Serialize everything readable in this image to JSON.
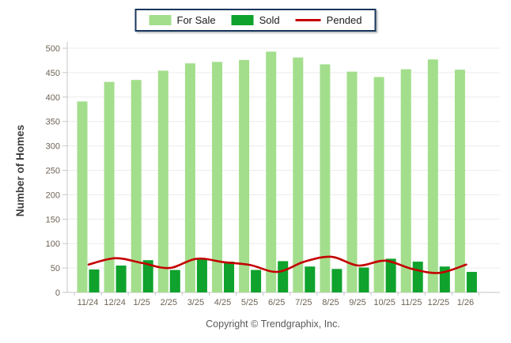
{
  "legend": {
    "border_color": "#17375E",
    "items": [
      {
        "label": "For Sale",
        "type": "swatch",
        "color": "#A3DE8C"
      },
      {
        "label": "Sold",
        "type": "swatch",
        "color": "#0FA22C"
      },
      {
        "label": "Pended",
        "type": "line",
        "color": "#C40000"
      }
    ]
  },
  "chart_data": {
    "type": "bar",
    "title": "",
    "xlabel": "",
    "ylabel": "Number of Homes",
    "ylim": [
      0,
      500
    ],
    "ytick_step": 50,
    "yticks": [
      0,
      50,
      100,
      150,
      200,
      250,
      300,
      350,
      400,
      450,
      500
    ],
    "grid": true,
    "legend_position": "top-center",
    "categories": [
      "11/24",
      "12/24",
      "1/25",
      "2/25",
      "3/25",
      "4/25",
      "5/25",
      "6/25",
      "7/25",
      "8/25",
      "9/25",
      "10/25",
      "11/25",
      "12/25",
      "1/26"
    ],
    "series": [
      {
        "name": "For Sale",
        "render": "bar",
        "color": "#A3DE8C",
        "values": [
          391,
          431,
          435,
          454,
          469,
          472,
          476,
          493,
          481,
          467,
          452,
          441,
          457,
          477,
          456
        ]
      },
      {
        "name": "Sold",
        "render": "bar",
        "color": "#0FA22C",
        "values": [
          47,
          55,
          66,
          46,
          68,
          63,
          46,
          64,
          53,
          48,
          51,
          69,
          63,
          53,
          42
        ]
      },
      {
        "name": "Pended",
        "render": "line",
        "color": "#C40000",
        "values": [
          57,
          70,
          60,
          50,
          69,
          62,
          56,
          42,
          63,
          73,
          55,
          65,
          48,
          40,
          57
        ]
      }
    ]
  },
  "footer": {
    "text": "Copyright © Trendgraphix, Inc."
  },
  "colors": {
    "grid_line": "#ECECEC",
    "axis_line": "#C6C6C6",
    "tick_text": "#6E6355",
    "axis_title_text": "#3F3F3F",
    "footer_text": "#595959"
  }
}
